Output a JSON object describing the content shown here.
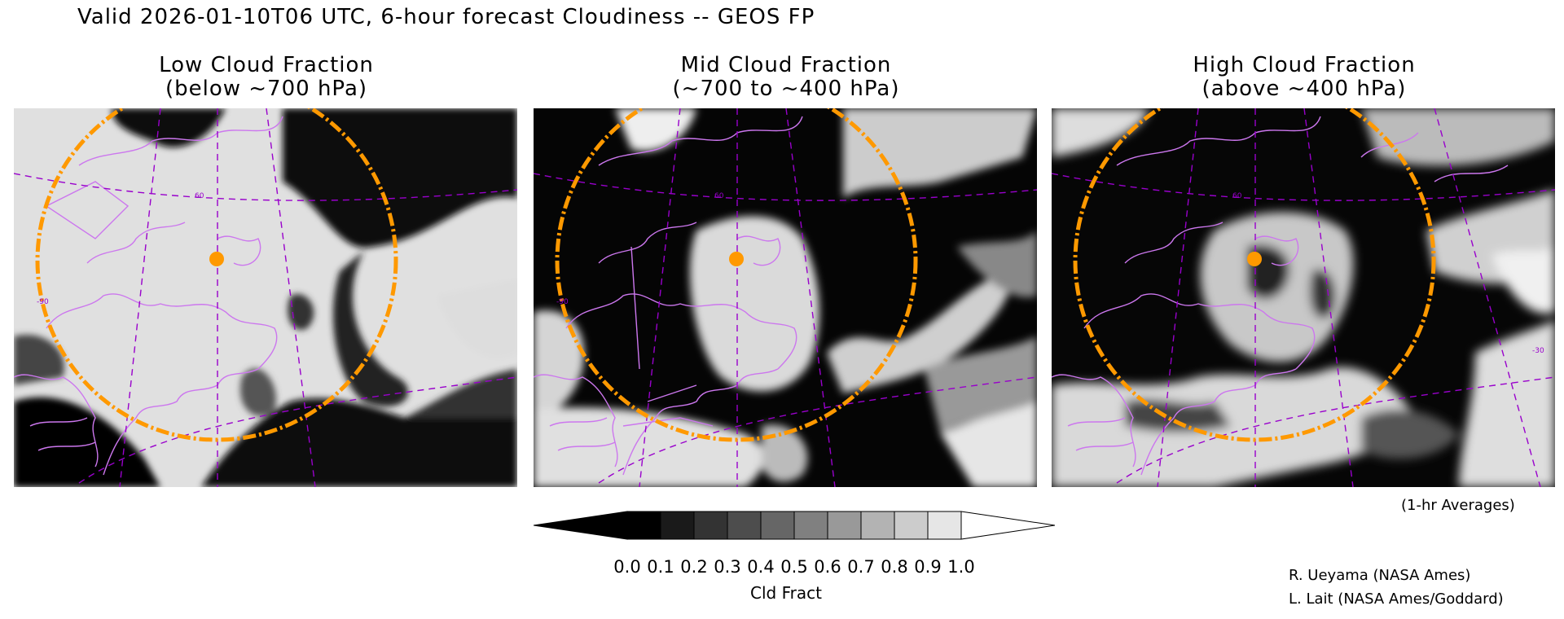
{
  "title": "Valid 2026-01-10T06 UTC, 6-hour forecast Cloudiness -- GEOS FP",
  "panels": [
    {
      "name": "low",
      "title_line1": "Low Cloud Fraction",
      "title_line2": "(below ~700 hPa)"
    },
    {
      "name": "mid",
      "title_line1": "Mid Cloud Fraction",
      "title_line2": "(~700 to ~400 hPa)"
    },
    {
      "name": "high",
      "title_line1": "High Cloud Fraction",
      "title_line2": "(above ~400 hPa)"
    }
  ],
  "map_labels": {
    "lat": "60",
    "lon": "-90",
    "lon2": "-30"
  },
  "averaging_note": "(1-hr Averages)",
  "colorbar": {
    "ticks": [
      "0.0",
      "0.1",
      "0.2",
      "0.3",
      "0.4",
      "0.5",
      "0.6",
      "0.7",
      "0.8",
      "0.9",
      "1.0"
    ],
    "unit_label": "Cld Fract",
    "colors": [
      "#000000",
      "#1a1a1a",
      "#333333",
      "#4d4d4d",
      "#666666",
      "#808080",
      "#999999",
      "#b3b3b3",
      "#cccccc",
      "#e6e6e6"
    ],
    "under_color": "#000000",
    "over_color": "#ffffff"
  },
  "credits": [
    "R. Ueyama (NASA Ames)",
    "L. Lait (NASA Ames/Goddard)"
  ],
  "colors": {
    "coastline": "#cc77ee",
    "grid": "#9900cc",
    "range_ring": "#ff9900",
    "marker": "#ff9900"
  }
}
